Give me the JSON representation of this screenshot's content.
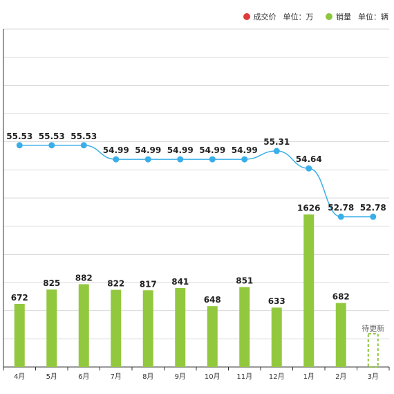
{
  "legend": {
    "price": {
      "name": "成交价",
      "unit": "单位：万",
      "color": "#e03a3a"
    },
    "sales": {
      "name": "销量",
      "unit": "单位：辆",
      "color": "#8dc63f"
    }
  },
  "chart_data": {
    "type": "bar+line",
    "categories": [
      "4月",
      "5月",
      "6月",
      "7月",
      "8月",
      "9月",
      "10月",
      "11月",
      "12月",
      "1月",
      "2月",
      "3月"
    ],
    "series": [
      {
        "name": "销量",
        "type": "bar",
        "color": "#92c83e",
        "values": [
          672,
          825,
          882,
          822,
          817,
          841,
          648,
          851,
          633,
          1626,
          682,
          null
        ]
      },
      {
        "name": "成交价",
        "type": "line",
        "color": "#3aaee8",
        "values": [
          55.53,
          55.53,
          55.53,
          54.99,
          54.99,
          54.99,
          54.99,
          54.99,
          55.31,
          54.64,
          52.78,
          52.78
        ]
      }
    ],
    "bar_range": [
      0,
      3600
    ],
    "line_range": [
      47.0,
      60.0
    ],
    "pending_label": "待更新",
    "grid": true,
    "legend_position": "top-right"
  }
}
